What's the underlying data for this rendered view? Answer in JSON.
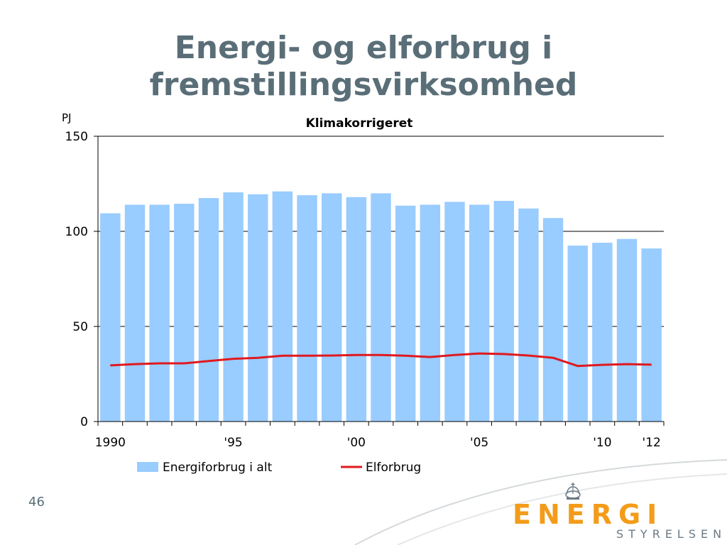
{
  "slide": {
    "title_line1": "Energi- og elforbrug i",
    "title_line2": "fremstillingsvirksomhed",
    "page_number": "46"
  },
  "logo": {
    "main": "ENERGI",
    "sub": "STYRELSEN"
  },
  "colors": {
    "title": "#5a6e78",
    "bars": "#99ccff",
    "line": "#e0191e",
    "logo_orange": "#f39c1a",
    "logo_grey": "#6b7a85"
  },
  "chart_data": {
    "type": "bar",
    "title": "Klimakorrigeret",
    "ylabel": "PJ",
    "ylim": [
      0,
      150
    ],
    "yticks": [
      0,
      50,
      100,
      150
    ],
    "grid": true,
    "legend_position": "bottom",
    "categories": [
      "1990",
      "1991",
      "1992",
      "1993",
      "1994",
      "1995",
      "1996",
      "1997",
      "1998",
      "1999",
      "2000",
      "2001",
      "2002",
      "2003",
      "2004",
      "2005",
      "2006",
      "2007",
      "2008",
      "2009",
      "2010",
      "2011",
      "2012"
    ],
    "tick_labels": [
      {
        "index": 0,
        "label": "1990"
      },
      {
        "index": 5,
        "label": "'95"
      },
      {
        "index": 10,
        "label": "'00"
      },
      {
        "index": 15,
        "label": "'05"
      },
      {
        "index": 20,
        "label": "'10"
      },
      {
        "index": 22,
        "label": "'12"
      }
    ],
    "series": [
      {
        "name": "Energiforbrug i alt",
        "kind": "bar",
        "color": "#99ccff",
        "values": [
          109.5,
          114,
          114,
          114.5,
          117.5,
          120.5,
          119.5,
          121,
          119,
          120,
          118,
          120,
          113.5,
          114,
          115.5,
          114,
          116,
          112,
          107,
          92.5,
          94,
          96,
          91
        ]
      },
      {
        "name": "Elforbrug",
        "kind": "line",
        "color": "#e0191e",
        "values": [
          29.5,
          30.2,
          30.6,
          30.6,
          31.8,
          33.0,
          33.5,
          34.6,
          34.6,
          34.7,
          35.0,
          35.0,
          34.6,
          33.9,
          35.0,
          35.8,
          35.5,
          34.7,
          33.5,
          29.2,
          29.8,
          30.2,
          29.9
        ]
      }
    ]
  }
}
